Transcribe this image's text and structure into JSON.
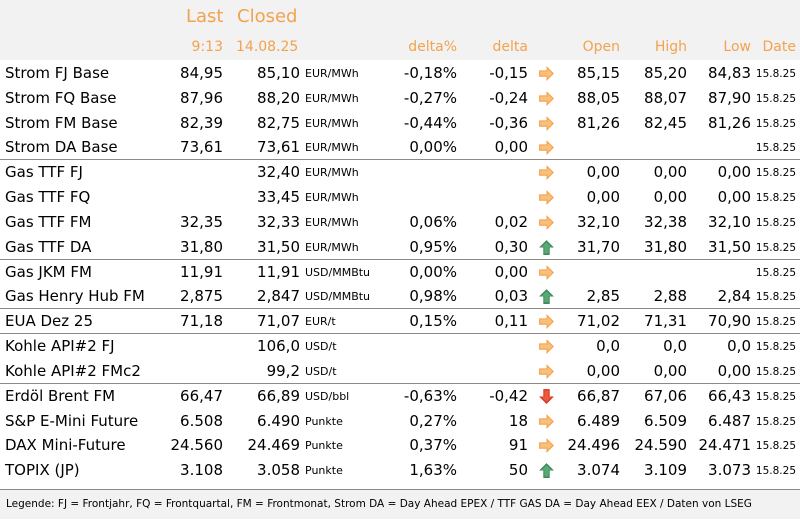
{
  "header": {
    "last_label": "Last",
    "closed_label": "Closed",
    "last_time": "9:13",
    "closed_date": "14.08.25",
    "col_deltapct": "delta%",
    "col_delta": "delta",
    "col_open": "Open",
    "col_high": "High",
    "col_low": "Low",
    "col_date": "Date"
  },
  "colors": {
    "header_text": "#f4a24d",
    "header_bg": "#f2f2f2",
    "arrow_right": "#f4a24d",
    "arrow_up": "#3c8c5a",
    "arrow_down": "#d9381e"
  },
  "rows": [
    {
      "name": "Strom FJ Base",
      "last": "84,95",
      "closed": "85,10",
      "unit": "EUR/MWh",
      "deltapct": "-0,18%",
      "delta": "-0,15",
      "arrow": "right-arrow-icon",
      "open": "85,15",
      "high": "85,20",
      "low": "84,83",
      "date": "15.8.25"
    },
    {
      "name": "Strom FQ Base",
      "last": "87,96",
      "closed": "88,20",
      "unit": "EUR/MWh",
      "deltapct": "-0,27%",
      "delta": "-0,24",
      "arrow": "right-arrow-icon",
      "open": "88,05",
      "high": "88,07",
      "low": "87,90",
      "date": "15.8.25"
    },
    {
      "name": "Strom FM Base",
      "last": "82,39",
      "closed": "82,75",
      "unit": "EUR/MWh",
      "deltapct": "-0,44%",
      "delta": "-0,36",
      "arrow": "right-arrow-icon",
      "open": "81,26",
      "high": "82,45",
      "low": "81,26",
      "date": "15.8.25"
    },
    {
      "name": "Strom DA Base",
      "last": "73,61",
      "closed": "73,61",
      "unit": "EUR/MWh",
      "deltapct": "0,00%",
      "delta": "0,00",
      "arrow": "right-arrow-icon",
      "open": "",
      "high": "",
      "low": "",
      "date": "15.8.25"
    },
    {
      "name": "Gas TTF FJ",
      "last": "",
      "closed": "32,40",
      "unit": "EUR/MWh",
      "deltapct": "",
      "delta": "",
      "arrow": "right-arrow-icon",
      "open": "0,00",
      "high": "0,00",
      "low": "0,00",
      "date": "15.8.25"
    },
    {
      "name": "Gas TTF FQ",
      "last": "",
      "closed": "33,45",
      "unit": "EUR/MWh",
      "deltapct": "",
      "delta": "",
      "arrow": "right-arrow-icon",
      "open": "0,00",
      "high": "0,00",
      "low": "0,00",
      "date": "15.8.25"
    },
    {
      "name": "Gas TTF FM",
      "last": "32,35",
      "closed": "32,33",
      "unit": "EUR/MWh",
      "deltapct": "0,06%",
      "delta": "0,02",
      "arrow": "right-arrow-icon",
      "open": "32,10",
      "high": "32,38",
      "low": "32,10",
      "date": "15.8.25"
    },
    {
      "name": "Gas TTF DA",
      "last": "31,80",
      "closed": "31,50",
      "unit": "EUR/MWh",
      "deltapct": "0,95%",
      "delta": "0,30",
      "arrow": "up-arrow-icon",
      "open": "31,70",
      "high": "31,80",
      "low": "31,50",
      "date": "15.8.25"
    },
    {
      "name": "Gas JKM FM",
      "last": "11,91",
      "closed": "11,91",
      "unit": "USD/MMBtu",
      "deltapct": "0,00%",
      "delta": "0,00",
      "arrow": "right-arrow-icon",
      "open": "",
      "high": "",
      "low": "",
      "date": "15.8.25"
    },
    {
      "name": "Gas Henry Hub FM",
      "last": "2,875",
      "closed": "2,847",
      "unit": "USD/MMBtu",
      "deltapct": "0,98%",
      "delta": "0,03",
      "arrow": "up-arrow-icon",
      "open": "2,85",
      "high": "2,88",
      "low": "2,84",
      "date": "15.8.25"
    },
    {
      "name": "EUA Dez 25",
      "last": "71,18",
      "closed": "71,07",
      "unit": "EUR/t",
      "deltapct": "0,15%",
      "delta": "0,11",
      "arrow": "right-arrow-icon",
      "open": "71,02",
      "high": "71,31",
      "low": "70,90",
      "date": "15.8.25"
    },
    {
      "name": "Kohle API#2 FJ",
      "last": "",
      "closed": "106,0",
      "unit": "USD/t",
      "deltapct": "",
      "delta": "",
      "arrow": "right-arrow-icon",
      "open": "0,0",
      "high": "0,0",
      "low": "0,0",
      "date": "15.8.25"
    },
    {
      "name": "Kohle API#2 FMc2",
      "last": "",
      "closed": "99,2",
      "unit": "USD/t",
      "deltapct": "",
      "delta": "",
      "arrow": "right-arrow-icon",
      "open": "0,00",
      "high": "0,00",
      "low": "0,00",
      "date": "15.8.25"
    },
    {
      "name": "Erdöl Brent FM",
      "last": "66,47",
      "closed": "66,89",
      "unit": "USD/bbl",
      "deltapct": "-0,63%",
      "delta": "-0,42",
      "arrow": "down-arrow-icon",
      "open": "66,87",
      "high": "67,06",
      "low": "66,43",
      "date": "15.8.25"
    },
    {
      "name": "S&P E-Mini Future",
      "last": "6.508",
      "closed": "6.490",
      "unit": "Punkte",
      "deltapct": "0,27%",
      "delta": "18",
      "arrow": "right-arrow-icon",
      "open": "6.489",
      "high": "6.509",
      "low": "6.487",
      "date": "15.8.25"
    },
    {
      "name": "DAX Mini-Future",
      "last": "24.560",
      "closed": "24.469",
      "unit": "Punkte",
      "deltapct": "0,37%",
      "delta": "91",
      "arrow": "right-arrow-icon",
      "open": "24.496",
      "high": "24.590",
      "low": "24.471",
      "date": "15.8.25"
    },
    {
      "name": "TOPIX (JP)",
      "last": "3.108",
      "closed": "3.058",
      "unit": "Punkte",
      "deltapct": "1,63%",
      "delta": "50",
      "arrow": "up-arrow-icon",
      "open": "3.074",
      "high": "3.109",
      "low": "3.073",
      "date": "15.8.25"
    }
  ],
  "legend": "Legende: FJ = Frontjahr, FQ = Frontquartal, FM = Frontmonat, Strom DA = Day Ahead EPEX / TTF GAS DA = Day Ahead EEX / Daten von LSEG"
}
